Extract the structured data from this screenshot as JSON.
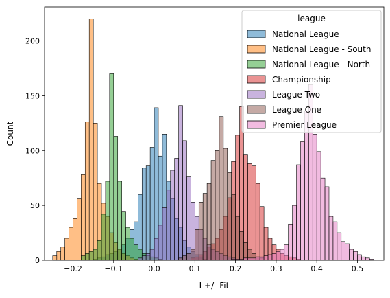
{
  "chart_data": {
    "type": "histogram",
    "xlabel": "I +/- Fit",
    "ylabel": "Count",
    "xlim": [
      -0.27,
      0.565
    ],
    "ylim": [
      0,
      231
    ],
    "bin_width": 0.01,
    "xticks": [
      -0.2,
      -0.1,
      0.0,
      0.1,
      0.2,
      0.3,
      0.4,
      0.5
    ],
    "xtick_labels": [
      "−0.2",
      "−0.1",
      "0.0",
      "0.1",
      "0.2",
      "0.3",
      "0.4",
      "0.5"
    ],
    "yticks": [
      0,
      50,
      100,
      150,
      200
    ],
    "ytick_labels": [
      "0",
      "50",
      "100",
      "150",
      "200"
    ],
    "legend": {
      "title": "league",
      "position": "upper right"
    },
    "series": [
      {
        "name": "National League",
        "color": "#1f77b4",
        "bin_starts": [
          -0.15,
          -0.14,
          -0.13,
          -0.12,
          -0.11,
          -0.1,
          -0.09,
          -0.08,
          -0.07,
          -0.06,
          -0.05,
          -0.04,
          -0.03,
          -0.02,
          -0.01,
          0.0,
          0.01,
          0.02,
          0.03,
          0.04,
          0.05,
          0.06,
          0.07,
          0.08,
          0.09,
          0.1,
          0.11,
          0.12
        ],
        "counts": [
          1,
          2,
          3,
          5,
          6,
          8,
          10,
          14,
          20,
          28,
          35,
          60,
          84,
          86,
          103,
          139,
          95,
          115,
          72,
          56,
          38,
          30,
          18,
          12,
          8,
          5,
          3,
          1
        ]
      },
      {
        "name": "National League - South",
        "color": "#ff7f0e",
        "bin_starts": [
          -0.25,
          -0.24,
          -0.23,
          -0.22,
          -0.21,
          -0.2,
          -0.19,
          -0.18,
          -0.17,
          -0.16,
          -0.15,
          -0.14,
          -0.13,
          -0.12,
          -0.11,
          -0.1,
          -0.09,
          -0.08,
          -0.07,
          -0.06,
          -0.05
        ],
        "counts": [
          4,
          8,
          12,
          20,
          30,
          38,
          56,
          78,
          126,
          220,
          125,
          70,
          52,
          40,
          25,
          16,
          10,
          6,
          4,
          2,
          1
        ]
      },
      {
        "name": "National League - North",
        "color": "#2ca02c",
        "bin_starts": [
          -0.18,
          -0.17,
          -0.16,
          -0.15,
          -0.14,
          -0.13,
          -0.12,
          -0.11,
          -0.1,
          -0.09,
          -0.08,
          -0.07,
          -0.06,
          -0.05,
          -0.04,
          -0.03,
          -0.02,
          -0.01,
          0.0,
          0.01
        ],
        "counts": [
          4,
          6,
          8,
          10,
          18,
          42,
          72,
          170,
          113,
          72,
          44,
          30,
          20,
          14,
          10,
          6,
          4,
          3,
          2,
          1
        ]
      },
      {
        "name": "Championship",
        "color": "#d62728",
        "bin_starts": [
          0.09,
          0.1,
          0.11,
          0.12,
          0.13,
          0.14,
          0.15,
          0.16,
          0.17,
          0.18,
          0.19,
          0.2,
          0.21,
          0.22,
          0.23,
          0.24,
          0.25,
          0.26,
          0.27,
          0.28,
          0.29,
          0.3,
          0.31,
          0.32,
          0.33,
          0.34,
          0.35
        ],
        "counts": [
          2,
          3,
          5,
          8,
          12,
          15,
          20,
          28,
          40,
          57,
          90,
          114,
          140,
          96,
          88,
          86,
          70,
          49,
          30,
          20,
          14,
          10,
          6,
          4,
          3,
          2,
          1
        ]
      },
      {
        "name": "League Two",
        "color": "#9467bd",
        "bin_starts": [
          -0.04,
          -0.03,
          -0.02,
          -0.01,
          0.0,
          0.01,
          0.02,
          0.03,
          0.04,
          0.05,
          0.06,
          0.07,
          0.08,
          0.09,
          0.1,
          0.11,
          0.12,
          0.13,
          0.14,
          0.15,
          0.16,
          0.17,
          0.18,
          0.19
        ],
        "counts": [
          2,
          4,
          6,
          10,
          20,
          32,
          48,
          64,
          82,
          93,
          141,
          109,
          76,
          53,
          40,
          28,
          20,
          14,
          10,
          8,
          6,
          4,
          3,
          2
        ]
      },
      {
        "name": "League One",
        "color": "#8c564b",
        "bin_starts": [
          0.06,
          0.07,
          0.08,
          0.09,
          0.1,
          0.11,
          0.12,
          0.13,
          0.14,
          0.15,
          0.16,
          0.17,
          0.18,
          0.19,
          0.2,
          0.21,
          0.22,
          0.23,
          0.24,
          0.25,
          0.26
        ],
        "counts": [
          2,
          4,
          6,
          10,
          28,
          53,
          61,
          70,
          91,
          100,
          131,
          102,
          80,
          60,
          40,
          26,
          16,
          10,
          6,
          3,
          2
        ]
      },
      {
        "name": "Premier League",
        "color": "#e377c2",
        "bin_starts": [
          0.19,
          0.2,
          0.21,
          0.22,
          0.23,
          0.24,
          0.25,
          0.26,
          0.27,
          0.28,
          0.29,
          0.3,
          0.31,
          0.32,
          0.33,
          0.34,
          0.35,
          0.36,
          0.37,
          0.38,
          0.39,
          0.4,
          0.41,
          0.42,
          0.43,
          0.44,
          0.45,
          0.46,
          0.47,
          0.48,
          0.49,
          0.5,
          0.51,
          0.52,
          0.53
        ],
        "counts": [
          1,
          1,
          1,
          2,
          2,
          2,
          3,
          3,
          4,
          5,
          6,
          8,
          10,
          14,
          33,
          50,
          87,
          108,
          136,
          160,
          115,
          99,
          75,
          67,
          40,
          35,
          25,
          17,
          15,
          10,
          8,
          5,
          3,
          2,
          1
        ]
      }
    ]
  }
}
